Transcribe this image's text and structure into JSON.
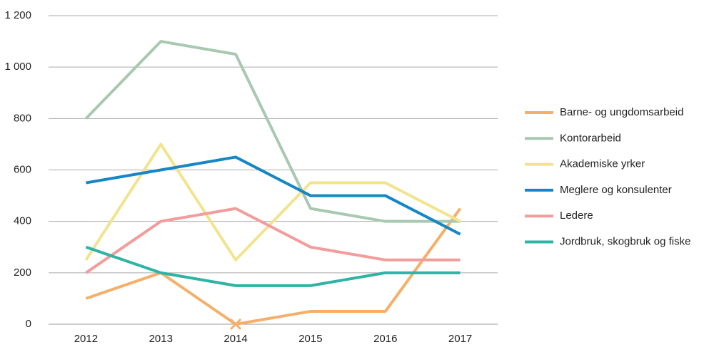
{
  "chart_data": {
    "type": "line",
    "categories": [
      "2012",
      "2013",
      "2014",
      "2015",
      "2016",
      "2017"
    ],
    "series": [
      {
        "name": "Barne- og ungdomsarbeid",
        "color": "#f4b06a",
        "values": [
          100,
          200,
          0,
          50,
          50,
          450
        ]
      },
      {
        "name": "Kontorarbeid",
        "color": "#a9c8b1",
        "values": [
          800,
          1100,
          1050,
          450,
          400,
          400
        ]
      },
      {
        "name": "Akademiske yrker",
        "color": "#f2e38f",
        "values": [
          250,
          700,
          250,
          550,
          550,
          400
        ]
      },
      {
        "name": "Meglere og konsulenter",
        "color": "#1686c4",
        "values": [
          550,
          600,
          650,
          500,
          500,
          350
        ]
      },
      {
        "name": "Ledere",
        "color": "#f29c9c",
        "values": [
          200,
          400,
          450,
          300,
          250,
          250
        ]
      },
      {
        "name": "Jordbruk, skogbruk og fiske",
        "color": "#2db4a4",
        "values": [
          300,
          200,
          150,
          150,
          200,
          200
        ]
      }
    ],
    "ylim": [
      0,
      1200
    ],
    "yticks": [
      0,
      200,
      400,
      600,
      800,
      {
        "value": 1000,
        "label": "1 000"
      },
      {
        "value": 1200,
        "label": "1 200"
      }
    ],
    "grid": true,
    "legend": "right"
  }
}
